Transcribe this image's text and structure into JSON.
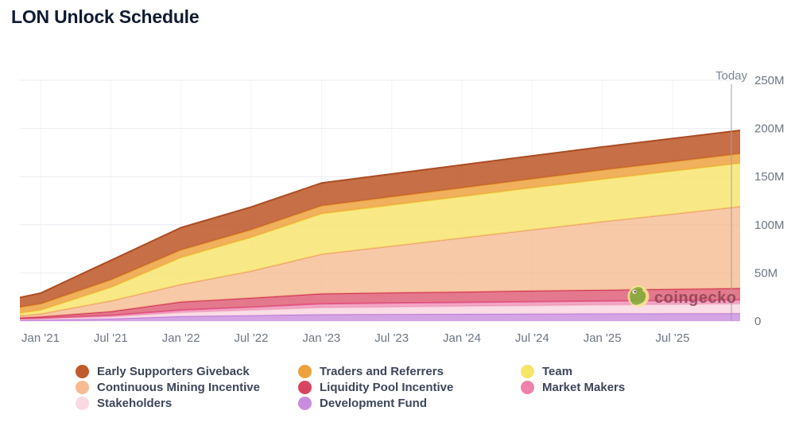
{
  "title": "LON Unlock Schedule",
  "chart": {
    "today_label": "Today",
    "watermark_text": "coingecko"
  },
  "chart_data": {
    "type": "area",
    "stacked": true,
    "title": "LON Unlock Schedule",
    "x_tick_labels": [
      "Jan '21",
      "Jul '21",
      "Jan '22",
      "Jul '22",
      "Jan '23",
      "Jul '23",
      "Jan '24",
      "Jul '24",
      "Jan '25",
      "Jul '25"
    ],
    "y_tick_labels": [
      "0",
      "50M",
      "100M",
      "150M",
      "200M",
      "250M"
    ],
    "ylim_millions": [
      0,
      250
    ],
    "values_unit": "millions of LON tokens (cumulative unlocked)",
    "grid": "horizontal and faint vertical",
    "legend_position": "bottom",
    "sample_points": [
      "chart-start",
      "Jan '21",
      "Jul '21",
      "Jan '22",
      "Jul '22",
      "Jan '23",
      "Jul '23",
      "Jan '24",
      "Jul '24",
      "Jan '25",
      "Jul '25",
      "today"
    ],
    "series_bottom_to_top": [
      {
        "name": "Development Fund",
        "color": "#c98ddf",
        "stroke": "#bc79d6",
        "values": [
          1,
          1.2,
          2.5,
          5,
          6,
          7,
          7.2,
          7.4,
          7.6,
          7.8,
          7.9,
          8
        ]
      },
      {
        "name": "Stakeholders",
        "color": "#fad9e3",
        "stroke": "#f3c3d3",
        "values": [
          1,
          1.2,
          2,
          4,
          5.5,
          7,
          7.5,
          8,
          8.5,
          9,
          9.5,
          10
        ]
      },
      {
        "name": "Market Makers",
        "color": "#ee82ab",
        "stroke": "#e4679a",
        "values": [
          0.5,
          0.6,
          1.5,
          2.5,
          3,
          4,
          4,
          4,
          4,
          4,
          4,
          4
        ]
      },
      {
        "name": "Liquidity Pool Incentive",
        "color": "#d94561",
        "stroke": "#cf3355",
        "values": [
          1,
          1.5,
          4,
          8.5,
          9.5,
          10.5,
          10.8,
          11,
          11.3,
          11.5,
          11.8,
          12
        ]
      },
      {
        "name": "Continuous Mining Incentive",
        "color": "#f6bb90",
        "stroke": "#eda071",
        "values": [
          2,
          3,
          11,
          18,
          28,
          41,
          48.5,
          56,
          63.5,
          71,
          78,
          85
        ]
      },
      {
        "name": "Team",
        "color": "#f8e468",
        "stroke": "#f1d44c",
        "values": [
          3,
          4,
          14,
          28,
          35,
          42,
          42.5,
          43,
          43.5,
          44,
          44.5,
          45
        ]
      },
      {
        "name": "Traders and Referrers",
        "color": "#eda23f",
        "stroke": "#e08f2a",
        "values": [
          6,
          6.5,
          8,
          8,
          8,
          8.3,
          8.6,
          9,
          9.3,
          9.6,
          9.8,
          10
        ]
      },
      {
        "name": "Early Supporters Giveback",
        "color": "#bf5b2d",
        "stroke": "#ab4c22",
        "values": [
          10,
          11,
          20,
          23,
          23.5,
          23.5,
          23.6,
          23.7,
          23.8,
          23.9,
          24,
          24
        ]
      }
    ],
    "legend_order": [
      "Early Supporters Giveback",
      "Traders and Referrers",
      "Team",
      "Continuous Mining Incentive",
      "Liquidity Pool Incentive",
      "Market Makers",
      "Stakeholders",
      "Development Fund"
    ]
  }
}
